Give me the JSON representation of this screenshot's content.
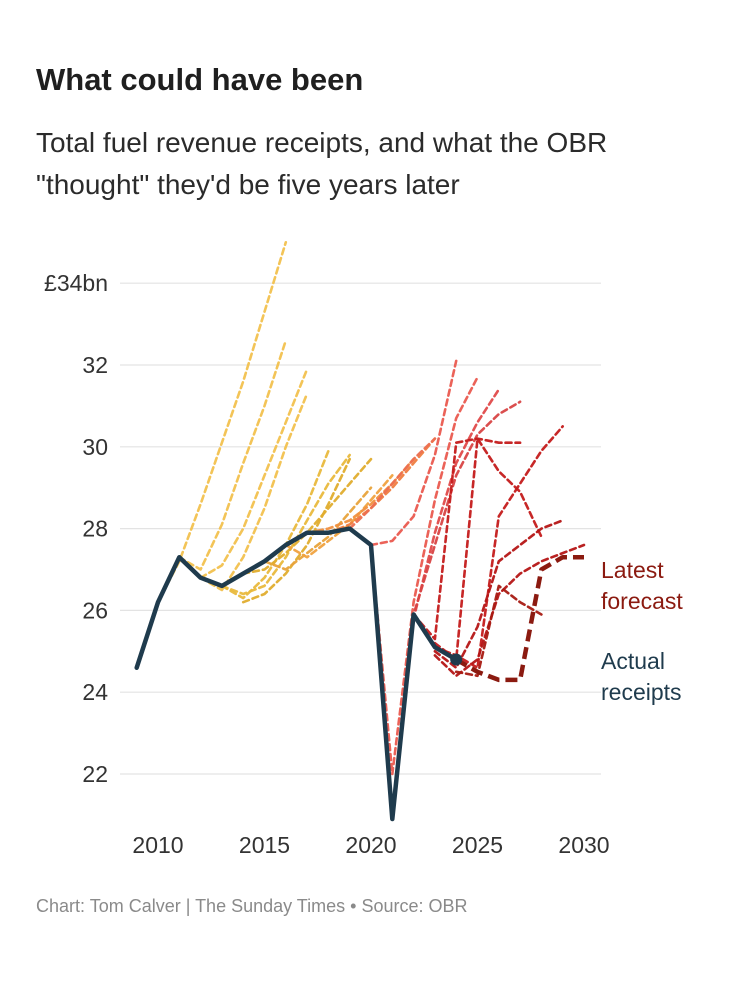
{
  "title": "What could have been",
  "subtitle_line1": "Total fuel revenue receipts, and what the OBR",
  "subtitle_line2": "\"thought\" they'd be five years later",
  "footer": {
    "credit": "Chart: Tom Calver | The Sunday Times",
    "separator": "•",
    "source": "Source: OBR"
  },
  "annotations": {
    "latest_forecast_line1": "Latest",
    "latest_forecast_line2": "forecast",
    "actual_receipts_line1": "Actual",
    "actual_receipts_line2": "receipts"
  },
  "colors": {
    "actual": "#1f3b4d",
    "latest": "#8b1a10",
    "gridline": "#e3e3e3"
  },
  "chart_data": {
    "type": "line",
    "title": "What could have been",
    "xlabel": "",
    "ylabel": "",
    "xlim": [
      2008,
      2031
    ],
    "ylim": [
      20.8,
      35
    ],
    "x_ticks": [
      {
        "value": 2010,
        "label": "2010"
      },
      {
        "value": 2015,
        "label": "2015"
      },
      {
        "value": 2020,
        "label": "2020"
      },
      {
        "value": 2025,
        "label": "2025"
      },
      {
        "value": 2030,
        "label": "2030"
      }
    ],
    "y_ticks": [
      {
        "value": 22,
        "label": "22"
      },
      {
        "value": 24,
        "label": "24"
      },
      {
        "value": 26,
        "label": "26"
      },
      {
        "value": 28,
        "label": "28"
      },
      {
        "value": 30,
        "label": "30"
      },
      {
        "value": 32,
        "label": "32"
      },
      {
        "value": 34,
        "label": "£34bn"
      }
    ],
    "actual": {
      "name": "Actual receipts",
      "x": [
        2009,
        2010,
        2011,
        2012,
        2013,
        2014,
        2015,
        2016,
        2017,
        2018,
        2019,
        2020,
        2021,
        2022,
        2023,
        2024
      ],
      "y": [
        24.6,
        26.2,
        27.3,
        26.8,
        26.6,
        26.9,
        27.2,
        27.6,
        27.9,
        27.9,
        28.0,
        27.6,
        20.9,
        25.9,
        25.1,
        24.8
      ]
    },
    "latest_forecast": {
      "name": "Latest forecast",
      "x": [
        2024,
        2025,
        2026,
        2027,
        2028,
        2029,
        2030
      ],
      "y": [
        24.8,
        24.5,
        24.3,
        24.3,
        27.0,
        27.3,
        27.3
      ]
    },
    "forecasts": [
      {
        "color": "#f2c14e",
        "x": [
          2010,
          2011,
          2012,
          2013,
          2014,
          2015,
          2016
        ],
        "y": [
          26.2,
          27.2,
          28.6,
          30.1,
          31.6,
          33.3,
          35.0
        ]
      },
      {
        "color": "#f2c14e",
        "x": [
          2011,
          2012,
          2013,
          2014,
          2015,
          2016
        ],
        "y": [
          27.3,
          27.0,
          28.1,
          29.6,
          31.0,
          32.6
        ]
      },
      {
        "color": "#f2c14e",
        "x": [
          2012,
          2013,
          2014,
          2015,
          2016,
          2017
        ],
        "y": [
          26.8,
          27.1,
          28.0,
          29.3,
          30.6,
          31.9
        ]
      },
      {
        "color": "#f2c14e",
        "x": [
          2012,
          2013,
          2014,
          2015,
          2016,
          2017
        ],
        "y": [
          26.8,
          26.5,
          27.3,
          28.5,
          30.0,
          31.3
        ]
      },
      {
        "color": "#e9b93d",
        "x": [
          2013,
          2014,
          2015,
          2016,
          2017,
          2018
        ],
        "y": [
          26.6,
          26.3,
          26.8,
          27.6,
          28.6,
          29.9
        ]
      },
      {
        "color": "#e9b93d",
        "x": [
          2013,
          2014,
          2015,
          2016,
          2017,
          2018,
          2019
        ],
        "y": [
          26.6,
          26.4,
          26.6,
          27.3,
          28.2,
          29.1,
          29.8
        ]
      },
      {
        "color": "#e0ad2e",
        "x": [
          2014,
          2015,
          2016,
          2017,
          2018,
          2019
        ],
        "y": [
          26.2,
          26.4,
          26.9,
          27.6,
          28.6,
          29.7
        ]
      },
      {
        "color": "#e0ad2e",
        "x": [
          2014,
          2015,
          2016,
          2017,
          2018,
          2019,
          2020
        ],
        "y": [
          26.9,
          27.0,
          27.4,
          27.9,
          28.5,
          29.1,
          29.7
        ]
      },
      {
        "color": "#e8a33b",
        "x": [
          2015,
          2016,
          2017,
          2018,
          2019,
          2020
        ],
        "y": [
          27.2,
          27.0,
          27.4,
          27.8,
          28.4,
          29.0
        ]
      },
      {
        "color": "#f0a23f",
        "x": [
          2016,
          2017,
          2018,
          2019,
          2020,
          2021
        ],
        "y": [
          27.6,
          27.3,
          27.7,
          28.1,
          28.7,
          29.3
        ]
      },
      {
        "color": "#f09040",
        "x": [
          2017,
          2018,
          2019,
          2020,
          2021,
          2022
        ],
        "y": [
          27.9,
          28.0,
          28.2,
          28.6,
          29.1,
          29.7
        ]
      },
      {
        "color": "#ef7d40",
        "x": [
          2018,
          2019,
          2020,
          2021,
          2022,
          2023
        ],
        "y": [
          27.9,
          28.1,
          28.5,
          29.0,
          29.6,
          30.2
        ]
      },
      {
        "color": "#ec6e4f",
        "x": [
          2019,
          2020,
          2021,
          2022,
          2023
        ],
        "y": [
          28.0,
          28.5,
          29.1,
          29.7,
          30.2
        ]
      },
      {
        "color": "#ea5a4f",
        "x": [
          2020,
          2021,
          2022,
          2023,
          2024
        ],
        "y": [
          27.6,
          27.7,
          28.3,
          29.8,
          32.1
        ]
      },
      {
        "color": "#ea5a4f",
        "x": [
          2020,
          2021,
          2022,
          2023,
          2024,
          2025
        ],
        "y": [
          27.6,
          22.0,
          26.2,
          28.7,
          30.7,
          31.7
        ]
      },
      {
        "color": "#e04a4a",
        "x": [
          2021,
          2022,
          2023,
          2024,
          2025,
          2026
        ],
        "y": [
          20.9,
          25.8,
          27.9,
          29.6,
          30.6,
          31.4
        ]
      },
      {
        "color": "#d84444",
        "x": [
          2021,
          2022,
          2023,
          2024,
          2025,
          2026,
          2027
        ],
        "y": [
          20.9,
          25.9,
          27.6,
          29.3,
          30.3,
          30.8,
          31.1
        ]
      },
      {
        "color": "#c41b1b",
        "x": [
          2022,
          2023,
          2024,
          2025,
          2026,
          2027
        ],
        "y": [
          25.9,
          25.3,
          30.1,
          30.2,
          30.1,
          30.1
        ]
      },
      {
        "color": "#c41b1b",
        "x": [
          2023,
          2024,
          2025,
          2026,
          2027,
          2028
        ],
        "y": [
          25.2,
          24.8,
          30.2,
          29.4,
          28.9,
          27.8
        ]
      },
      {
        "color": "#c41b1b",
        "x": [
          2023,
          2024,
          2025,
          2026,
          2027,
          2028,
          2029
        ],
        "y": [
          25.1,
          24.9,
          24.6,
          28.3,
          29.1,
          29.9,
          30.5
        ]
      },
      {
        "color": "#b51515",
        "x": [
          2023,
          2024,
          2025,
          2026,
          2027,
          2028,
          2029
        ],
        "y": [
          25.0,
          24.6,
          25.6,
          27.2,
          27.6,
          28.0,
          28.2
        ]
      },
      {
        "color": "#b51515",
        "x": [
          2023,
          2024,
          2025,
          2026,
          2027,
          2028,
          2029,
          2030
        ],
        "y": [
          24.9,
          24.4,
          24.8,
          26.4,
          26.9,
          27.2,
          27.4,
          27.6
        ]
      },
      {
        "color": "#a81a12",
        "x": [
          2024,
          2025,
          2026,
          2027,
          2028
        ],
        "y": [
          24.5,
          24.4,
          26.6,
          26.2,
          25.9
        ]
      }
    ]
  }
}
